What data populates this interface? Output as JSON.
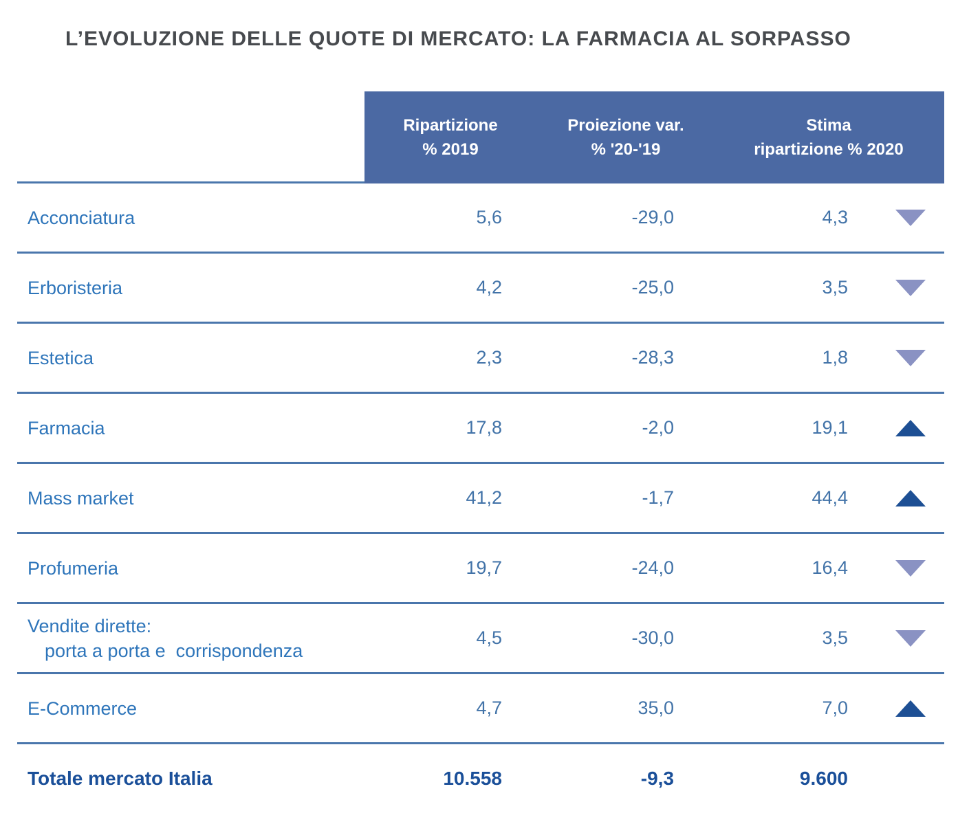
{
  "title": "L’EVOLUZIONE DELLE QUOTE DI MERCATO: LA FARMACIA AL SORPASSO",
  "colors": {
    "header_bg": "#4b69a3",
    "line": "#4a76ac",
    "label": "#2e75ba",
    "value": "#4273a8",
    "total": "#1a4f99",
    "up": "#1d4f94",
    "down": "#8a92c3",
    "title": "#474a4e"
  },
  "table": {
    "headers": [
      {
        "line1": "Ripartizione",
        "line2": "% 2019"
      },
      {
        "line1": "Proiezione var.",
        "line2": "% '20-'19"
      },
      {
        "line1": "Stima",
        "line2": "ripartizione % 2020"
      }
    ],
    "rows": [
      {
        "label": "Acconciatura",
        "label2": "",
        "v2019": "5,6",
        "var": "-29,0",
        "v2020": "4,3",
        "trend": "down"
      },
      {
        "label": "Erboristeria",
        "label2": "",
        "v2019": "4,2",
        "var": "-25,0",
        "v2020": "3,5",
        "trend": "down"
      },
      {
        "label": "Estetica",
        "label2": "",
        "v2019": "2,3",
        "var": "-28,3",
        "v2020": "1,8",
        "trend": "down"
      },
      {
        "label": "Farmacia",
        "label2": "",
        "v2019": "17,8",
        "var": "-2,0",
        "v2020": "19,1",
        "trend": "up"
      },
      {
        "label": "Mass market",
        "label2": "",
        "v2019": "41,2",
        "var": "-1,7",
        "v2020": "44,4",
        "trend": "up"
      },
      {
        "label": "Profumeria",
        "label2": "",
        "v2019": "19,7",
        "var": "-24,0",
        "v2020": "16,4",
        "trend": "down"
      },
      {
        "label": "Vendite dirette:",
        "label2": "porta a porta e  corrispondenza",
        "v2019": "4,5",
        "var": "-30,0",
        "v2020": "3,5",
        "trend": "down"
      },
      {
        "label": "E-Commerce",
        "label2": "",
        "v2019": "4,7",
        "var": "35,0",
        "v2020": "7,0",
        "trend": "up"
      }
    ],
    "total": {
      "label": "Totale mercato Italia",
      "v2019": "10.558",
      "var": "-9,3",
      "v2020": "9.600"
    }
  },
  "chart_data": {
    "type": "table",
    "title": "L’EVOLUZIONE DELLE QUOTE DI MERCATO: LA FARMACIA AL SORPASSO",
    "columns": [
      "",
      "Ripartizione % 2019",
      "Proiezione var. % '20-'19",
      "Stima ripartizione % 2020",
      "Trend"
    ],
    "rows": [
      [
        "Acconciatura",
        5.6,
        -29.0,
        4.3,
        "down"
      ],
      [
        "Erboristeria",
        4.2,
        -25.0,
        3.5,
        "down"
      ],
      [
        "Estetica",
        2.3,
        -28.3,
        1.8,
        "down"
      ],
      [
        "Farmacia",
        17.8,
        -2.0,
        19.1,
        "up"
      ],
      [
        "Mass market",
        41.2,
        -1.7,
        44.4,
        "up"
      ],
      [
        "Profumeria",
        19.7,
        -24.0,
        16.4,
        "down"
      ],
      [
        "Vendite dirette: porta a porta e corrispondenza",
        4.5,
        -30.0,
        3.5,
        "down"
      ],
      [
        "E-Commerce",
        4.7,
        35.0,
        7.0,
        "up"
      ]
    ],
    "total_row": [
      "Totale mercato Italia",
      "10.558",
      "-9,3",
      "9.600",
      ""
    ]
  }
}
